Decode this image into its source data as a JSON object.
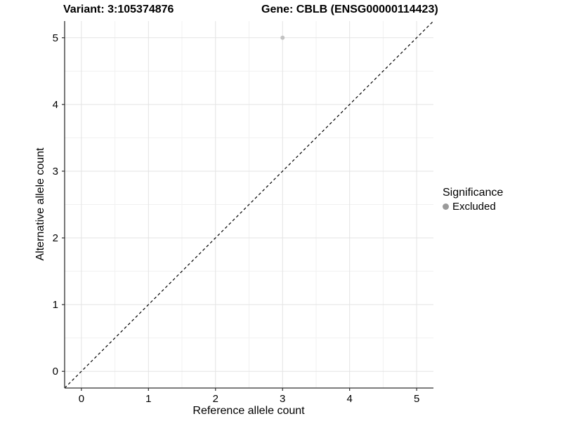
{
  "header": {
    "variant_title": "Variant: 3:105374876",
    "gene_title": "Gene: CBLB (ENSG00000114423)"
  },
  "chart_data": {
    "type": "scatter",
    "title": "Variant: 3:105374876 | Gene: CBLB (ENSG00000114423)",
    "xlabel": "Reference allele count",
    "ylabel": "Alternative allele count",
    "xlim": [
      -0.25,
      5.25
    ],
    "ylim": [
      -0.25,
      5.25
    ],
    "x_ticks": [
      0,
      1,
      2,
      3,
      4,
      5
    ],
    "y_ticks": [
      0,
      1,
      2,
      3,
      4,
      5
    ],
    "x_minor_ticks": [
      0.5,
      1.5,
      2.5,
      3.5,
      4.5
    ],
    "y_minor_ticks": [
      0.5,
      1.5,
      2.5,
      3.5,
      4.5
    ],
    "grid": true,
    "legend_position": "right",
    "series": [
      {
        "name": "Excluded",
        "color": "#c2c2c2",
        "points": [
          {
            "x": 3,
            "y": 5
          }
        ]
      }
    ],
    "reference_line": {
      "type": "identity",
      "style": "dashed",
      "color": "#000000",
      "from": [
        -0.25,
        -0.25
      ],
      "to": [
        5.25,
        5.25
      ]
    }
  },
  "legend": {
    "title": "Significance",
    "items": [
      {
        "label": "Excluded",
        "color": "#9a9a9a"
      }
    ]
  },
  "colors": {
    "background": "#ffffff",
    "grid_major": "#e3e3e3",
    "grid_minor": "#f1f1f1",
    "axis_line": "#2e2e2e",
    "tick_mark": "#2e2e2e",
    "point": "#c2c2c2",
    "dashed_line": "#000000",
    "text": "#000000"
  }
}
